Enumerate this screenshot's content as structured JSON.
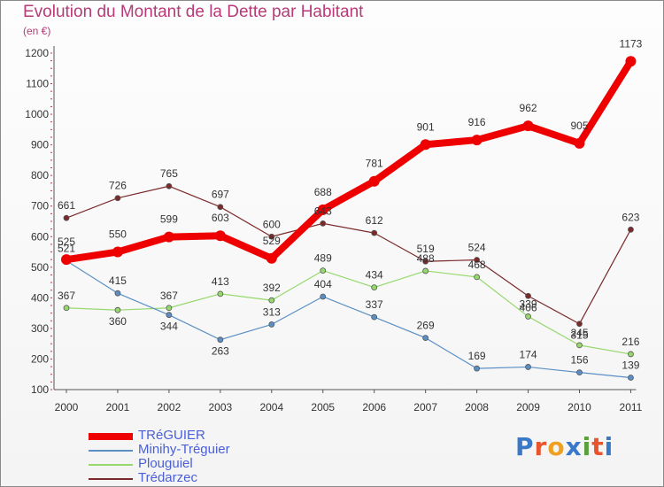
{
  "title": "Evolution du Montant de la Dette par Habitant",
  "subtitle": "(en €)",
  "logo": {
    "text": "Proxiti",
    "colors": [
      "#3a78c8",
      "#e8542c",
      "#f0a020",
      "#3a78c8",
      "#5aa03c",
      "#e8542c",
      "#3a78c8"
    ]
  },
  "chart_data": {
    "type": "line",
    "title": "Evolution du Montant de la Dette par Habitant",
    "subtitle": "(en €)",
    "x": [
      "2000",
      "2001",
      "2002",
      "2003",
      "2004",
      "2005",
      "2006",
      "2007",
      "2008",
      "2009",
      "2010",
      "2011"
    ],
    "ylim": [
      100,
      1200
    ],
    "yticks": [
      100,
      200,
      300,
      400,
      500,
      600,
      700,
      800,
      900,
      1000,
      1100,
      1200
    ],
    "grid": false,
    "legend_position": "bottom-left",
    "series": [
      {
        "name": "TRéGUIER",
        "color": "#ee0000",
        "values": [
          525,
          550,
          599,
          603,
          529,
          688,
          781,
          901,
          916,
          962,
          905,
          1173
        ]
      },
      {
        "name": "Minihy-Tréguier",
        "color": "#5b8fc4",
        "values": [
          521,
          415,
          344,
          263,
          313,
          404,
          337,
          269,
          169,
          174,
          156,
          139
        ]
      },
      {
        "name": "Plouguiel",
        "color": "#96d86e",
        "values": [
          367,
          360,
          367,
          413,
          392,
          489,
          434,
          488,
          468,
          339,
          245,
          216
        ]
      },
      {
        "name": "Trédarzec",
        "color": "#7a2a2a",
        "values": [
          661,
          726,
          765,
          697,
          600,
          643,
          612,
          519,
          524,
          406,
          315,
          623
        ]
      }
    ]
  }
}
